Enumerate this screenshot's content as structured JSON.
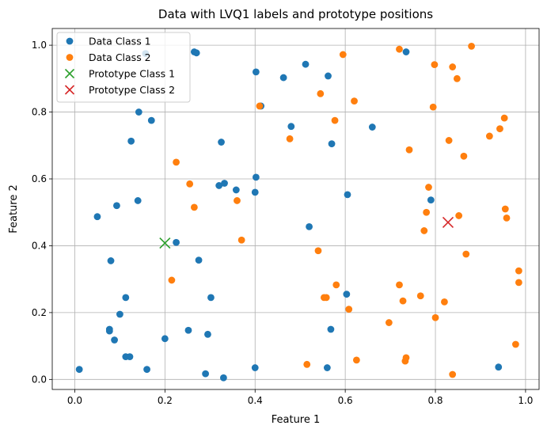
{
  "chart_data": {
    "type": "scatter",
    "title": "Data with LVQ1 labels and prototype positions",
    "xlabel": "Feature 1",
    "ylabel": "Feature 2",
    "xlim": [
      -0.05,
      1.03
    ],
    "ylim": [
      -0.03,
      1.05
    ],
    "xticks": [
      "0.0",
      "0.2",
      "0.4",
      "0.6",
      "0.8",
      "1.0"
    ],
    "yticks": [
      "0.0",
      "0.2",
      "0.4",
      "0.6",
      "0.8",
      "1.0"
    ],
    "grid": true,
    "legend_position": "top-left",
    "series": [
      {
        "name": "Data Class 1",
        "marker": "circle",
        "color": "#1f77b4",
        "points": [
          [
            0.01,
            0.03
          ],
          [
            0.05,
            0.487
          ],
          [
            0.08,
            0.355
          ],
          [
            0.077,
            0.15
          ],
          [
            0.077,
            0.145
          ],
          [
            0.088,
            0.118
          ],
          [
            0.1,
            0.195
          ],
          [
            0.093,
            0.52
          ],
          [
            0.113,
            0.068
          ],
          [
            0.113,
            0.245
          ],
          [
            0.122,
            0.068
          ],
          [
            0.125,
            0.713
          ],
          [
            0.14,
            0.535
          ],
          [
            0.142,
            0.8
          ],
          [
            0.16,
            0.03
          ],
          [
            0.157,
            0.975
          ],
          [
            0.17,
            0.775
          ],
          [
            0.2,
            0.122
          ],
          [
            0.225,
            0.41
          ],
          [
            0.252,
            0.147
          ],
          [
            0.265,
            0.98
          ],
          [
            0.27,
            0.977
          ],
          [
            0.275,
            0.357
          ],
          [
            0.29,
            0.017
          ],
          [
            0.295,
            0.135
          ],
          [
            0.302,
            0.245
          ],
          [
            0.32,
            0.58
          ],
          [
            0.325,
            0.71
          ],
          [
            0.33,
            0.005
          ],
          [
            0.332,
            0.587
          ],
          [
            0.358,
            0.567
          ],
          [
            0.4,
            0.035
          ],
          [
            0.4,
            0.56
          ],
          [
            0.402,
            0.605
          ],
          [
            0.402,
            0.92
          ],
          [
            0.413,
            0.818
          ],
          [
            0.463,
            0.903
          ],
          [
            0.48,
            0.757
          ],
          [
            0.512,
            0.943
          ],
          [
            0.52,
            0.457
          ],
          [
            0.56,
            0.035
          ],
          [
            0.562,
            0.908
          ],
          [
            0.568,
            0.15
          ],
          [
            0.57,
            0.705
          ],
          [
            0.603,
            0.255
          ],
          [
            0.605,
            0.553
          ],
          [
            0.66,
            0.755
          ],
          [
            0.735,
            0.98
          ],
          [
            0.79,
            0.537
          ],
          [
            0.94,
            0.037
          ]
        ]
      },
      {
        "name": "Data Class 2",
        "marker": "circle",
        "color": "#ff7f0e",
        "points": [
          [
            0.215,
            0.297
          ],
          [
            0.225,
            0.65
          ],
          [
            0.255,
            0.585
          ],
          [
            0.265,
            0.515
          ],
          [
            0.36,
            0.535
          ],
          [
            0.37,
            0.417
          ],
          [
            0.41,
            0.818
          ],
          [
            0.477,
            0.72
          ],
          [
            0.515,
            0.045
          ],
          [
            0.54,
            0.385
          ],
          [
            0.545,
            0.855
          ],
          [
            0.553,
            0.245
          ],
          [
            0.558,
            0.245
          ],
          [
            0.577,
            0.775
          ],
          [
            0.58,
            0.283
          ],
          [
            0.595,
            0.972
          ],
          [
            0.608,
            0.21
          ],
          [
            0.62,
            0.833
          ],
          [
            0.625,
            0.058
          ],
          [
            0.697,
            0.17
          ],
          [
            0.72,
            0.988
          ],
          [
            0.72,
            0.283
          ],
          [
            0.728,
            0.235
          ],
          [
            0.733,
            0.055
          ],
          [
            0.735,
            0.065
          ],
          [
            0.742,
            0.687
          ],
          [
            0.767,
            0.25
          ],
          [
            0.775,
            0.445
          ],
          [
            0.78,
            0.5
          ],
          [
            0.785,
            0.575
          ],
          [
            0.795,
            0.815
          ],
          [
            0.798,
            0.942
          ],
          [
            0.8,
            0.185
          ],
          [
            0.82,
            0.232
          ],
          [
            0.83,
            0.715
          ],
          [
            0.838,
            0.015
          ],
          [
            0.838,
            0.935
          ],
          [
            0.848,
            0.9
          ],
          [
            0.852,
            0.49
          ],
          [
            0.863,
            0.668
          ],
          [
            0.868,
            0.375
          ],
          [
            0.88,
            0.997
          ],
          [
            0.92,
            0.728
          ],
          [
            0.943,
            0.75
          ],
          [
            0.953,
            0.782
          ],
          [
            0.955,
            0.51
          ],
          [
            0.958,
            0.483
          ],
          [
            0.978,
            0.105
          ],
          [
            0.985,
            0.325
          ],
          [
            0.985,
            0.29
          ]
        ]
      },
      {
        "name": "Prototype Class 1",
        "marker": "x",
        "color": "#2ca02c",
        "points": [
          [
            0.2,
            0.408
          ]
        ]
      },
      {
        "name": "Prototype Class 2",
        "marker": "x",
        "color": "#d62728",
        "points": [
          [
            0.828,
            0.47
          ]
        ]
      }
    ]
  }
}
